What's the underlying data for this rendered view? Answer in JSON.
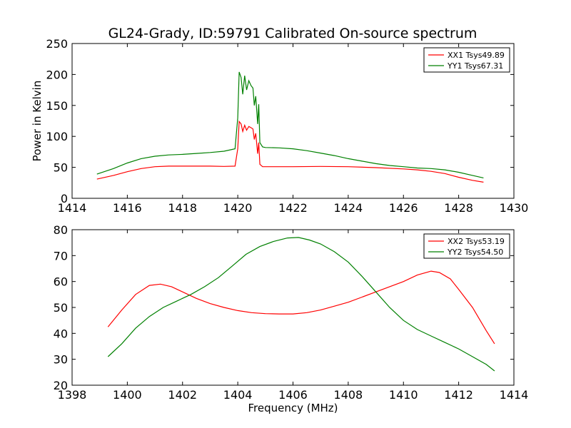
{
  "title": "GL24-Grady, ID:59791 Calibrated On-source spectrum",
  "chart_data": [
    {
      "type": "line",
      "ylabel": "Power in Kelvin",
      "xlabel": "",
      "xlim": [
        1414,
        1430
      ],
      "ylim": [
        0,
        250
      ],
      "xticks": [
        1414,
        1416,
        1418,
        1420,
        1422,
        1424,
        1426,
        1428,
        1430
      ],
      "yticks": [
        0,
        50,
        100,
        150,
        200,
        250
      ],
      "legend": "top-right",
      "grid": false,
      "series": [
        {
          "name": "XX1 Tsys49.89",
          "color": "#ff0000",
          "points": [
            [
              1414.9,
              31
            ],
            [
              1415.5,
              37
            ],
            [
              1416.0,
              43
            ],
            [
              1416.5,
              48
            ],
            [
              1417.0,
              51
            ],
            [
              1417.5,
              52
            ],
            [
              1418.0,
              52
            ],
            [
              1418.5,
              52
            ],
            [
              1419.0,
              52
            ],
            [
              1419.5,
              51.5
            ],
            [
              1419.9,
              52
            ],
            [
              1420.0,
              80
            ],
            [
              1420.05,
              124
            ],
            [
              1420.12,
              120
            ],
            [
              1420.18,
              108
            ],
            [
              1420.25,
              118
            ],
            [
              1420.32,
              110
            ],
            [
              1420.4,
              116
            ],
            [
              1420.48,
              114
            ],
            [
              1420.55,
              112
            ],
            [
              1420.6,
              95
            ],
            [
              1420.65,
              105
            ],
            [
              1420.72,
              72
            ],
            [
              1420.76,
              90
            ],
            [
              1420.8,
              55
            ],
            [
              1420.9,
              51
            ],
            [
              1421.0,
              51
            ],
            [
              1422.0,
              51
            ],
            [
              1423.0,
              51.5
            ],
            [
              1424.0,
              51
            ],
            [
              1425.0,
              49.5
            ],
            [
              1426.0,
              47.5
            ],
            [
              1426.5,
              46
            ],
            [
              1427.0,
              43.5
            ],
            [
              1427.5,
              40
            ],
            [
              1428.0,
              34
            ],
            [
              1428.5,
              29
            ],
            [
              1428.9,
              26
            ]
          ]
        },
        {
          "name": "YY1 Tsys67.31",
          "color": "#008000",
          "points": [
            [
              1414.9,
              39
            ],
            [
              1415.5,
              48
            ],
            [
              1416.0,
              57
            ],
            [
              1416.5,
              64
            ],
            [
              1417.0,
              68
            ],
            [
              1417.5,
              70
            ],
            [
              1418.0,
              71
            ],
            [
              1418.5,
              72.5
            ],
            [
              1419.0,
              74
            ],
            [
              1419.5,
              76
            ],
            [
              1419.9,
              80
            ],
            [
              1420.0,
              130
            ],
            [
              1420.05,
              204
            ],
            [
              1420.12,
              195
            ],
            [
              1420.18,
              168
            ],
            [
              1420.25,
              198
            ],
            [
              1420.32,
              175
            ],
            [
              1420.4,
              190
            ],
            [
              1420.48,
              182
            ],
            [
              1420.55,
              178
            ],
            [
              1420.6,
              150
            ],
            [
              1420.65,
              165
            ],
            [
              1420.72,
              120
            ],
            [
              1420.76,
              152
            ],
            [
              1420.8,
              90
            ],
            [
              1420.9,
              83
            ],
            [
              1421.0,
              82
            ],
            [
              1421.5,
              81.5
            ],
            [
              1422.0,
              80
            ],
            [
              1422.5,
              77
            ],
            [
              1423.0,
              73
            ],
            [
              1423.5,
              69
            ],
            [
              1424.0,
              64
            ],
            [
              1424.5,
              60
            ],
            [
              1425.0,
              56
            ],
            [
              1425.5,
              53
            ],
            [
              1426.0,
              51
            ],
            [
              1426.5,
              49
            ],
            [
              1427.0,
              48
            ],
            [
              1427.5,
              46
            ],
            [
              1428.0,
              42
            ],
            [
              1428.5,
              37
            ],
            [
              1428.9,
              33
            ]
          ]
        }
      ]
    },
    {
      "type": "line",
      "ylabel": "",
      "xlabel": "Frequency (MHz)",
      "xlim": [
        1398,
        1414
      ],
      "ylim": [
        20,
        80
      ],
      "xticks": [
        1398,
        1400,
        1402,
        1404,
        1406,
        1408,
        1410,
        1412,
        1414
      ],
      "yticks": [
        20,
        30,
        40,
        50,
        60,
        70,
        80
      ],
      "legend": "top-right",
      "grid": false,
      "series": [
        {
          "name": "XX2 Tsys53.19",
          "color": "#ff0000",
          "points": [
            [
              1399.3,
              42.5
            ],
            [
              1399.8,
              49
            ],
            [
              1400.3,
              55
            ],
            [
              1400.8,
              58.5
            ],
            [
              1401.2,
              59
            ],
            [
              1401.6,
              58
            ],
            [
              1402.0,
              56
            ],
            [
              1402.5,
              53.5
            ],
            [
              1403.0,
              51.5
            ],
            [
              1403.5,
              50
            ],
            [
              1404.0,
              48.8
            ],
            [
              1404.5,
              48
            ],
            [
              1405.0,
              47.6
            ],
            [
              1405.5,
              47.5
            ],
            [
              1406.0,
              47.5
            ],
            [
              1406.5,
              48
            ],
            [
              1407.0,
              49
            ],
            [
              1407.5,
              50.5
            ],
            [
              1408.0,
              52
            ],
            [
              1408.5,
              54
            ],
            [
              1409.0,
              56
            ],
            [
              1409.5,
              58
            ],
            [
              1410.0,
              60
            ],
            [
              1410.5,
              62.5
            ],
            [
              1411.0,
              64
            ],
            [
              1411.3,
              63.5
            ],
            [
              1411.7,
              61
            ],
            [
              1412.0,
              57
            ],
            [
              1412.5,
              50
            ],
            [
              1413.0,
              41
            ],
            [
              1413.3,
              36
            ]
          ]
        },
        {
          "name": "YY2 Tsys54.50",
          "color": "#008000",
          "points": [
            [
              1399.3,
              31
            ],
            [
              1399.8,
              36
            ],
            [
              1400.3,
              42
            ],
            [
              1400.8,
              46.5
            ],
            [
              1401.3,
              50
            ],
            [
              1401.8,
              52.5
            ],
            [
              1402.3,
              55
            ],
            [
              1402.8,
              58
            ],
            [
              1403.3,
              61.5
            ],
            [
              1403.8,
              66
            ],
            [
              1404.3,
              70.5
            ],
            [
              1404.8,
              73.5
            ],
            [
              1405.3,
              75.5
            ],
            [
              1405.8,
              76.8
            ],
            [
              1406.2,
              77
            ],
            [
              1406.6,
              76
            ],
            [
              1407.0,
              74.5
            ],
            [
              1407.5,
              71.5
            ],
            [
              1408.0,
              67.5
            ],
            [
              1408.5,
              62
            ],
            [
              1409.0,
              56
            ],
            [
              1409.5,
              50
            ],
            [
              1410.0,
              45
            ],
            [
              1410.5,
              41.5
            ],
            [
              1411.0,
              39
            ],
            [
              1411.5,
              36.5
            ],
            [
              1412.0,
              34
            ],
            [
              1412.5,
              31
            ],
            [
              1413.0,
              28
            ],
            [
              1413.3,
              25.5
            ]
          ]
        }
      ]
    }
  ]
}
